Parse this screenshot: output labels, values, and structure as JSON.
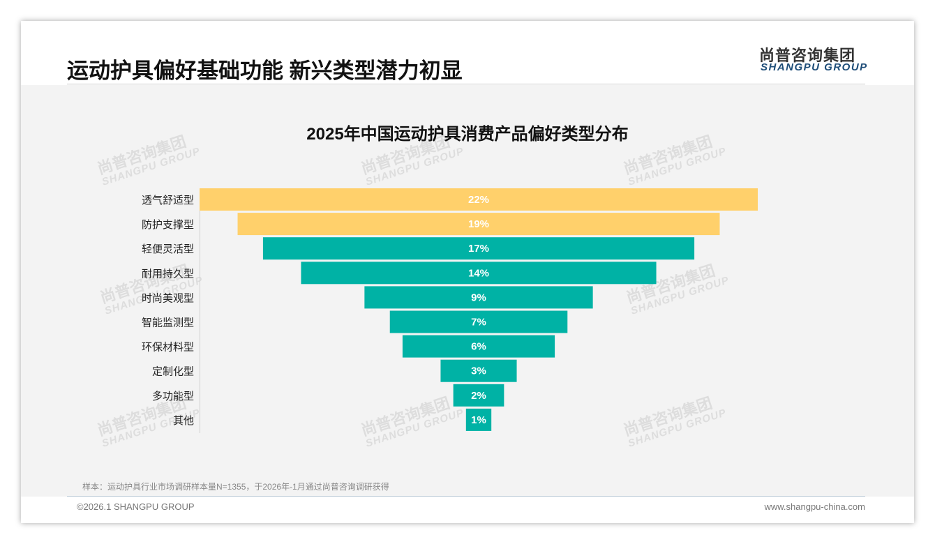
{
  "header": {
    "title": "运动护具偏好基础功能 新兴类型潜力初显",
    "logo_cn": "尚普咨询集团",
    "logo_en": "SHANGPU GROUP"
  },
  "watermark": {
    "cn": "尚普咨询集团",
    "en": "SHANGPU GROUP"
  },
  "chart_data": {
    "type": "bar",
    "orientation": "horizontal-funnel",
    "title": "2025年中国运动护具消费产品偏好类型分布",
    "categories": [
      "透气舒适型",
      "防护支撑型",
      "轻便灵活型",
      "耐用持久型",
      "时尚美观型",
      "智能监测型",
      "环保材料型",
      "定制化型",
      "多功能型",
      "其他"
    ],
    "values": [
      22,
      19,
      17,
      14,
      9,
      7,
      6,
      3,
      2,
      1
    ],
    "labels": [
      "22%",
      "19%",
      "17%",
      "14%",
      "9%",
      "7%",
      "6%",
      "3%",
      "2%",
      "1%"
    ],
    "unit": "%",
    "colors": [
      "#FFD06B",
      "#FFD06B",
      "#00B2A5",
      "#00B2A5",
      "#00B2A5",
      "#00B2A5",
      "#00B2A5",
      "#00B2A5",
      "#00B2A5",
      "#00B2A5"
    ]
  },
  "footer": {
    "note": "样本：运动护具行业市场调研样本量N=1355，于2026年-1月通过尚普咨询调研获得",
    "copyright": "©2026.1 SHANGPU GROUP",
    "url": "www.shangpu-china.com"
  }
}
